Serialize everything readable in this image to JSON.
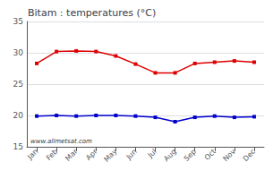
{
  "chart_data": {
    "type": "line",
    "title": "Bitam : temperatures (°C)",
    "categories": [
      "Jan",
      "Feb",
      "Mar",
      "Apr",
      "May",
      "Jun",
      "Jul",
      "Aug",
      "Sep",
      "Oct",
      "Nov",
      "Dec"
    ],
    "series": [
      {
        "color": "#dd0000",
        "values": [
          28.3,
          30.2,
          30.3,
          30.2,
          29.5,
          28.2,
          26.8,
          26.8,
          28.3,
          28.5,
          28.7,
          28.5
        ]
      },
      {
        "color": "#0000cc",
        "values": [
          19.9,
          20.0,
          19.9,
          20.0,
          20.0,
          19.9,
          19.7,
          19.0,
          19.7,
          19.9,
          19.7,
          19.8
        ]
      }
    ],
    "marker": "square",
    "ylim": [
      15,
      35
    ],
    "yticks": [
      15,
      20,
      25,
      30,
      35
    ],
    "grid": true,
    "annotations": [
      "www.allmetsat.com"
    ]
  }
}
